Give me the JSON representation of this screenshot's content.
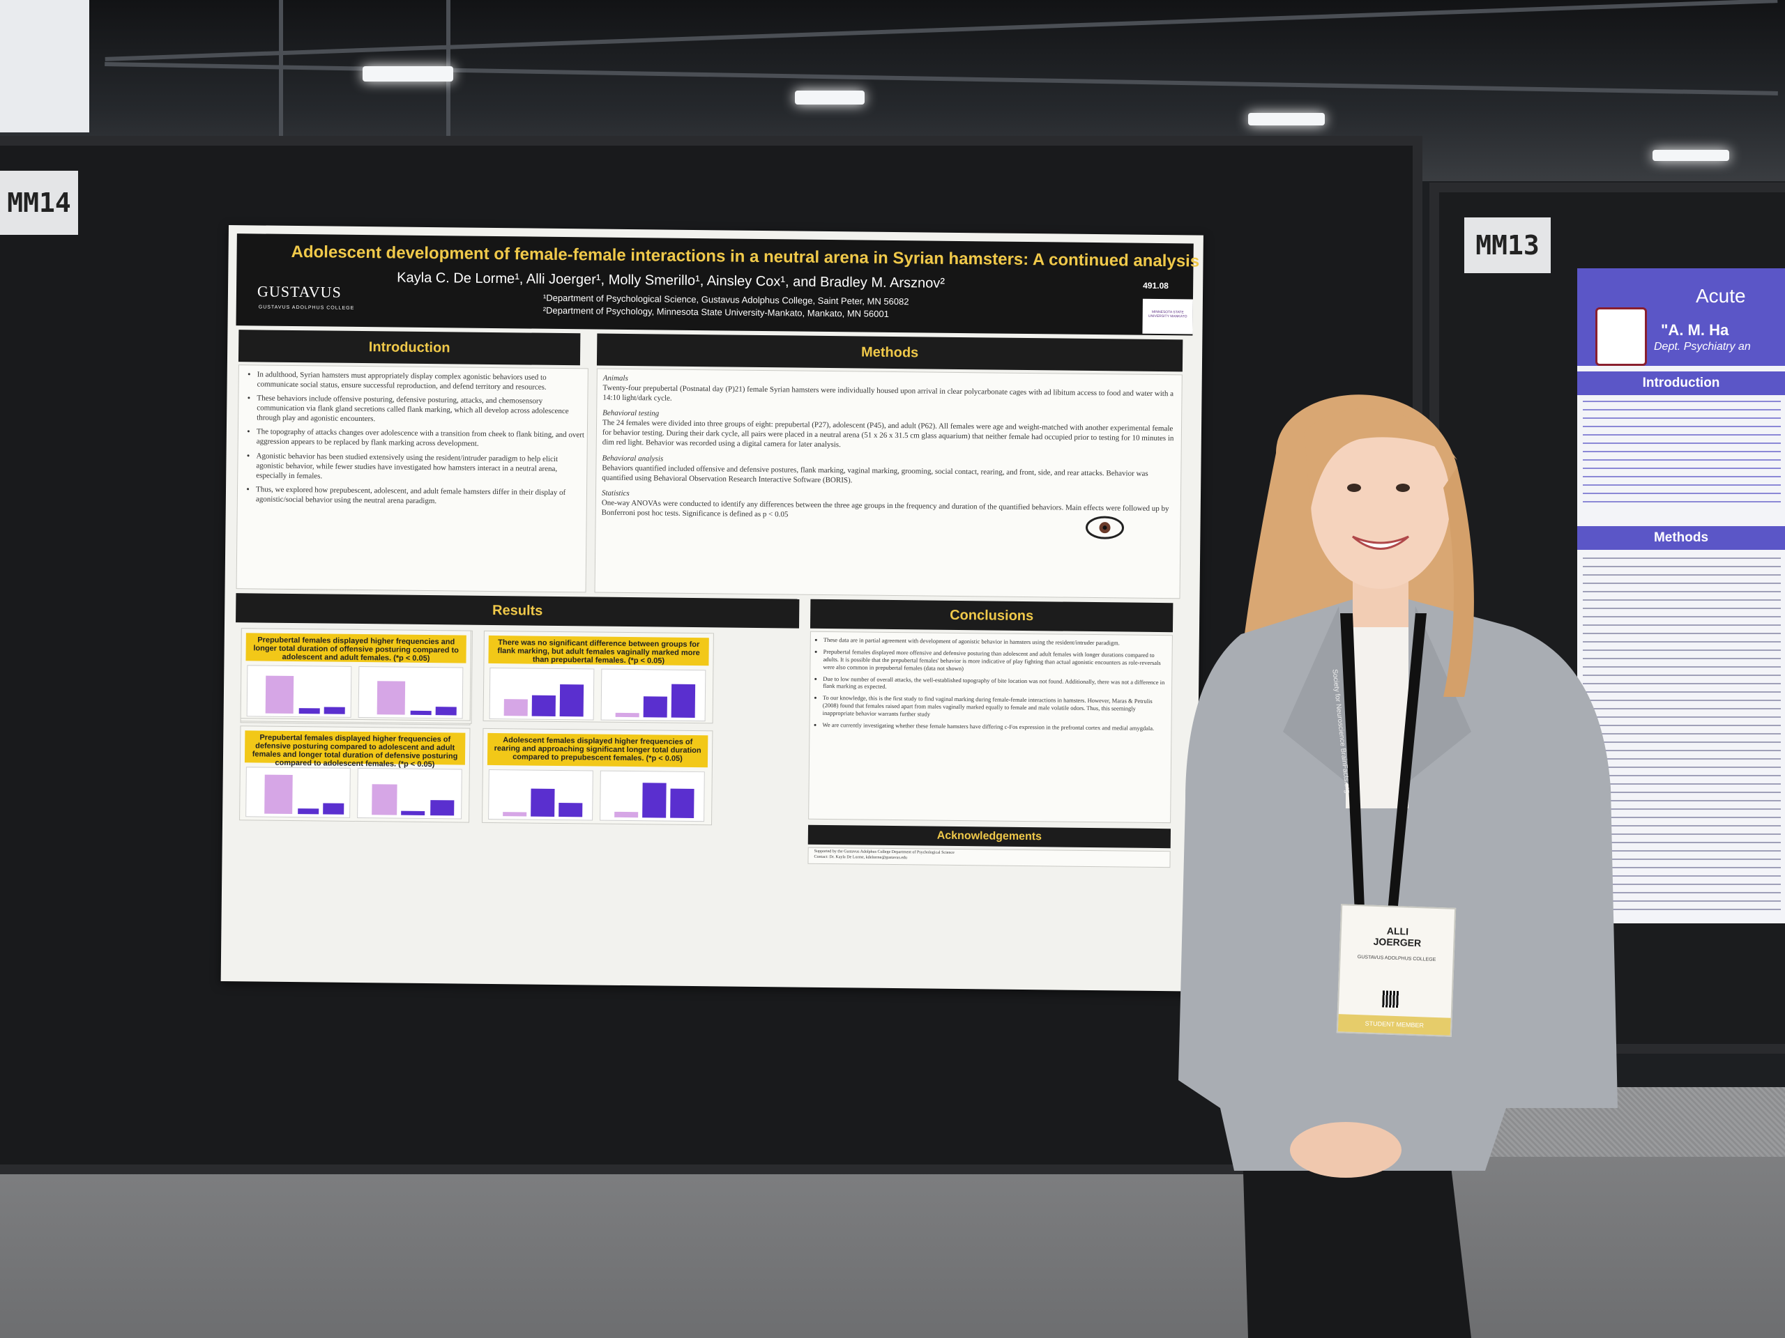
{
  "board_left_tag": "MM14",
  "board_right_tag": "MM13",
  "poster": {
    "title": "Adolescent development of female-female interactions in a neutral arena in Syrian hamsters: A continued analysis",
    "authors": "Kayla C. De Lorme¹, Alli Joerger¹, Molly Smerillo¹, Ainsley Cox¹, and Bradley M. Arsznov²",
    "affiliation_1": "¹Department of Psychological Science, Gustavus Adolphus College, Saint Peter, MN 56082",
    "affiliation_2": "²Department of Psychology, Minnesota State University-Mankato, Mankato, MN 56001",
    "number": "491.08",
    "logo_left": "GUSTAVUS",
    "logo_left_sub": "GUSTAVUS ADOLPHUS COLLEGE",
    "logo_right": "MINNESOTA STATE UNIVERSITY MANKATO",
    "introduction": {
      "heading": "Introduction",
      "bullets": [
        "In adulthood, Syrian hamsters must appropriately display complex agonistic behaviors used to communicate social status, ensure successful reproduction, and defend territory and resources.",
        "These behaviors include offensive posturing, defensive posturing, attacks, and chemosensory communication via flank gland secretions called flank marking, which all develop across adolescence through play and agonistic encounters.",
        "The topography of attacks changes over adolescence with a transition from cheek to flank biting, and overt aggression appears to be replaced by flank marking across development.",
        "Agonistic behavior has been studied extensively using the resident/intruder paradigm to help elicit agonistic behavior, while fewer studies have investigated how hamsters interact in a neutral arena, especially in females.",
        "Thus, we explored how prepubescent, adolescent, and adult female hamsters differ in their display of agonistic/social behavior using the neutral arena paradigm."
      ]
    },
    "methods": {
      "heading": "Methods",
      "animals_label": "Animals",
      "animals": "Twenty-four prepubertal (Postnatal day (P)21) female Syrian hamsters were individually housed upon arrival in clear polycarbonate cages with ad libitum access to food and water with a 14:10 light/dark cycle.",
      "testing_label": "Behavioral testing",
      "testing": "The 24 females were divided into three groups of eight: prepubertal (P27), adolescent (P45), and adult (P62). All females were age and weight-matched with another experimental female for behavior testing. During their dark cycle, all pairs were placed in a neutral arena (51 x 26 x 31.5 cm glass aquarium) that neither female had occupied prior to testing for 10 minutes in dim red light. Behavior was recorded using a digital camera for later analysis.",
      "analysis_label": "Behavioral analysis",
      "analysis": "Behaviors quantified included offensive and defensive postures, flank marking, vaginal marking, grooming, social contact, rearing, and front, side, and rear attacks. Behavior was quantified using Behavioral Observation Research Interactive Software (BORIS).",
      "stats_label": "Statistics",
      "stats": "One-way ANOVAs were conducted to identify any differences between the three age groups in the frequency and duration of the quantified behaviors. Main effects were followed up by Bonferroni post hoc tests. Significance is defined as p < 0.05"
    },
    "results": {
      "heading": "Results",
      "captions": [
        "Prepubertal females displayed higher frequencies and longer total duration of offensive posturing compared to adolescent and adult females. (*p < 0.05)",
        "There was no significant difference between groups for flank marking, but adult females vaginally marked more than prepubertal females. (*p < 0.05)",
        "Prepubertal females displayed higher frequencies of defensive posturing compared to adolescent and adult females and longer total duration of defensive posturing compared to adolescent females. (*p < 0.05)",
        "Adolescent females displayed higher frequencies of rearing and approaching significant longer total duration compared to prepubescent females. (*p < 0.05)"
      ]
    },
    "conclusions": {
      "heading": "Conclusions",
      "bullets": [
        "These data are in partial agreement with development of agonistic behavior in hamsters using the resident/intruder paradigm.",
        "Prepubertal females displayed more offensive and defensive posturing than adolescent and adult females with longer durations compared to adults. It is possible that the prepubertal females' behavior is more indicative of play fighting than actual agonistic encounters as role-reversals were also common in prepubertal females (data not shown)",
        "Due to low number of overall attacks, the well-established topography of bite location was not found. Additionally, there was not a difference in flank marking as expected.",
        "To our knowledge, this is the first study to find vaginal marking during female-female interactions in hamsters. However, Maras & Petrulis (2008) found that females raised apart from males vaginally marked equally to female and male volatile odors. Thus, this seemingly inappropriate behavior warrants further study",
        "We are currently investigating whether these female hamsters have differing c-Fos expression in the prefrontal cortex and medial amygdala."
      ]
    },
    "acknowledgements": {
      "heading": "Acknowledgements",
      "line_1": "Supported by the Gustavus Adolphus College Department of Psychological Science",
      "line_2": "Contact: Dr. Kayla De Lorme, kdelorme@gustavus.edu"
    }
  },
  "poster_right": {
    "title": "Acute",
    "authors": "\"A. M. Ha",
    "dept": "Dept. Psychiatry an",
    "sections": [
      "Introduction",
      "Methods"
    ]
  },
  "badge": {
    "name_first": "ALLI",
    "name_last": "JOERGER",
    "org": "GUSTAVUS ADOLPHUS COLLEGE",
    "member": "STUDENT MEMBER",
    "lanyard_text": "Society for Neuroscience  BrainFacts.org"
  },
  "colors": {
    "poster_header": "#151515",
    "poster_title": "#f0c94a",
    "caption_yellow": "#f2c818",
    "bar_prepubertal": "#d6a6e6",
    "bar_adolescent": "#5a2fcf",
    "bar_adult": "#5a2fcf",
    "right_poster_accent": "#5b56c7",
    "blazer": "#a9adb3",
    "hair": "#d9a773"
  }
}
